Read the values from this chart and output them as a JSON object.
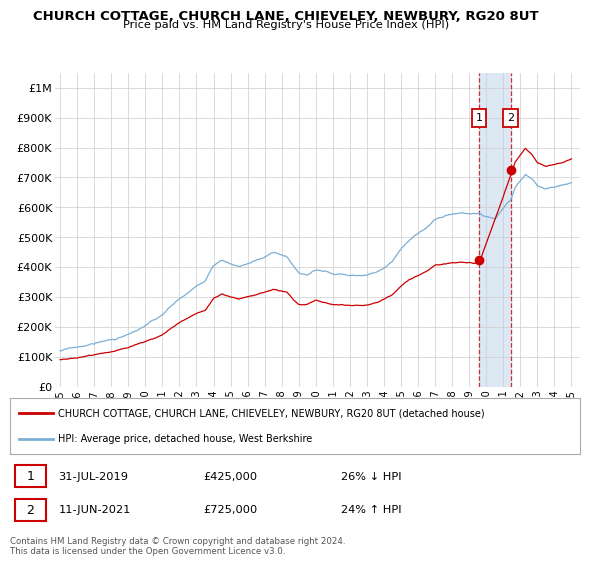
{
  "title": "CHURCH COTTAGE, CHURCH LANE, CHIEVELEY, NEWBURY, RG20 8UT",
  "subtitle": "Price paid vs. HM Land Registry's House Price Index (HPI)",
  "legend_red": "CHURCH COTTAGE, CHURCH LANE, CHIEVELEY, NEWBURY, RG20 8UT (detached house)",
  "legend_blue": "HPI: Average price, detached house, West Berkshire",
  "transaction1_date": "31-JUL-2019",
  "transaction1_price": "£425,000",
  "transaction1_hpi": "26% ↓ HPI",
  "transaction2_date": "11-JUN-2021",
  "transaction2_price": "£725,000",
  "transaction2_hpi": "24% ↑ HPI",
  "footer": "Contains HM Land Registry data © Crown copyright and database right 2024.\nThis data is licensed under the Open Government Licence v3.0.",
  "ylim": [
    0,
    1050000
  ],
  "yticks": [
    0,
    100000,
    200000,
    300000,
    400000,
    500000,
    600000,
    700000,
    800000,
    900000,
    1000000
  ],
  "ytick_labels": [
    "£0",
    "£100K",
    "£200K",
    "£300K",
    "£400K",
    "£500K",
    "£600K",
    "£700K",
    "£800K",
    "£900K",
    "£1M"
  ],
  "red_color": "#cc0000",
  "blue_color": "#7bafd4",
  "shade_color": "#dce9f5",
  "transaction1_x": 2019.58,
  "transaction1_y": 425000,
  "transaction2_x": 2021.44,
  "transaction2_y": 725000,
  "xlabel_years": [
    1995,
    1996,
    1997,
    1998,
    1999,
    2000,
    2001,
    2002,
    2003,
    2004,
    2005,
    2006,
    2007,
    2008,
    2009,
    2010,
    2011,
    2012,
    2013,
    2014,
    2015,
    2016,
    2017,
    2018,
    2019,
    2020,
    2021,
    2022,
    2023,
    2024,
    2025
  ],
  "xlim": [
    1994.7,
    2025.5
  ]
}
